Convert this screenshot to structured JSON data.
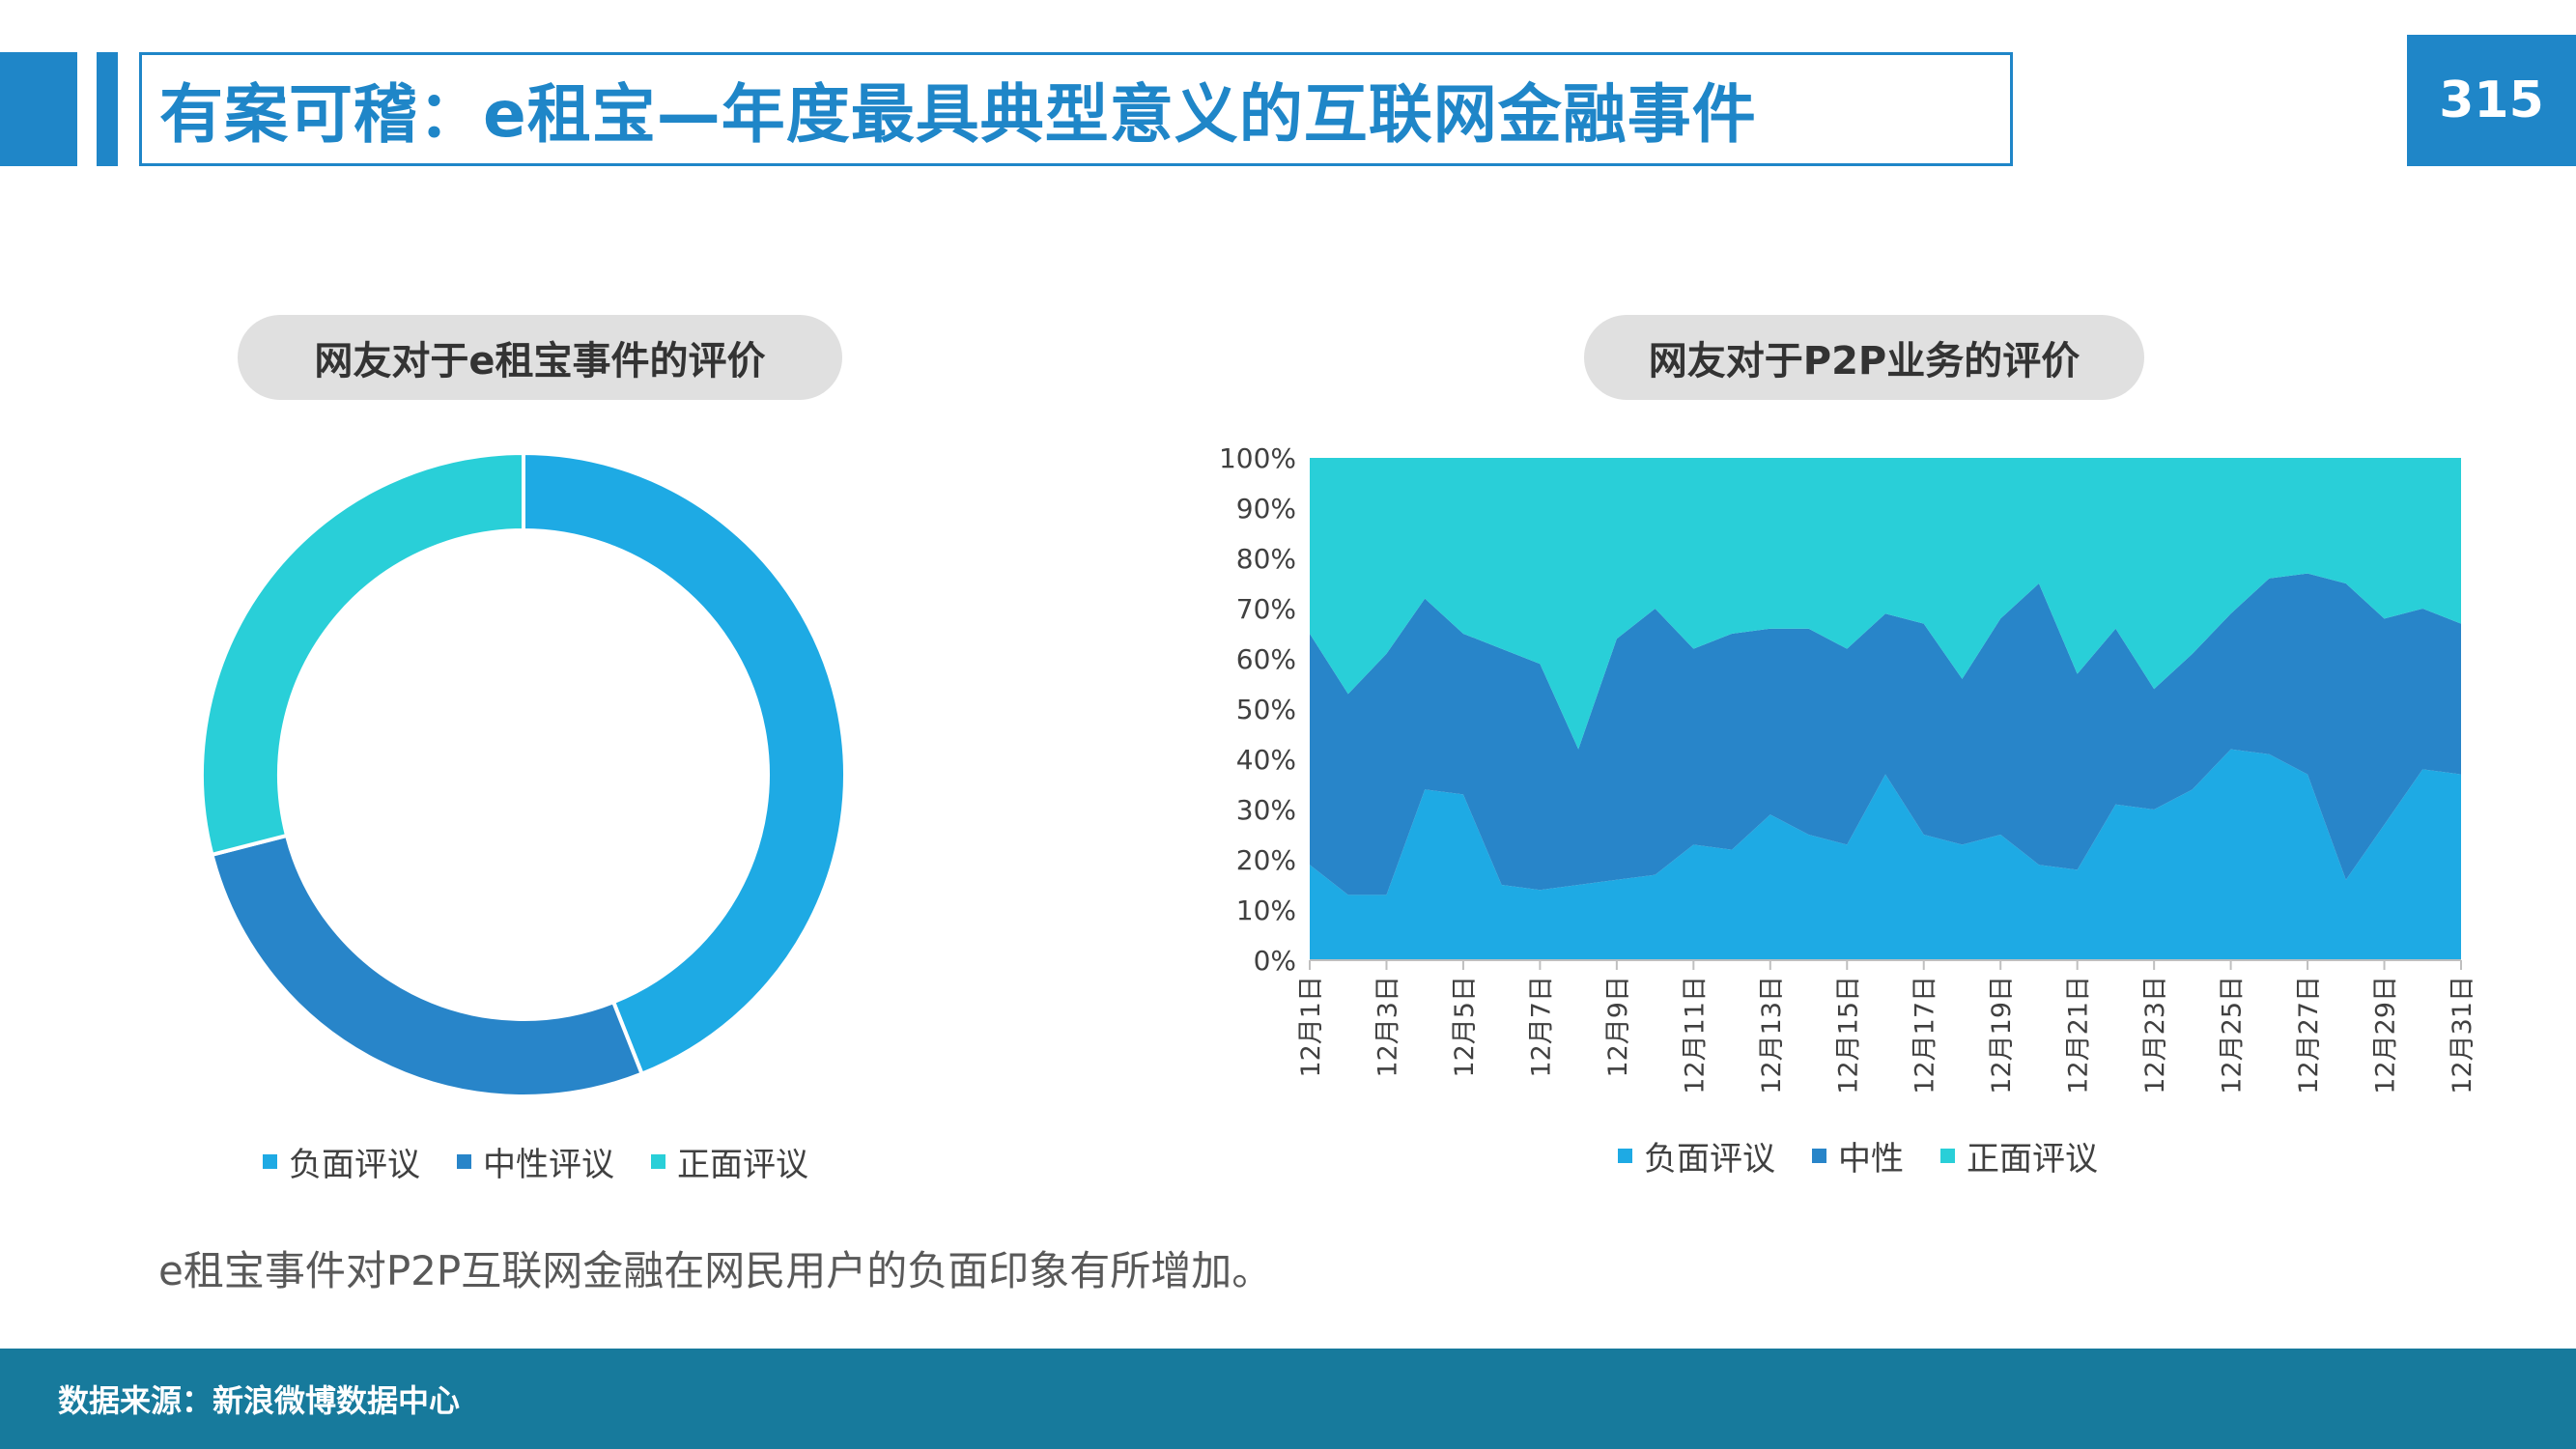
{
  "header": {
    "title": "有案可稽：e租宝—年度最具典型意义的互联网金融事件",
    "page_number": "315"
  },
  "colors": {
    "accent": "#1f86c8",
    "negative": "#1eaae4",
    "neutral": "#2885c9",
    "positive": "#29cfd8",
    "footer": "#177a9c"
  },
  "left_chart": {
    "pill_title": "网友对于e租宝事件的评价",
    "legend": [
      "负面评议",
      "中性评议",
      "正面评议"
    ]
  },
  "right_chart": {
    "pill_title": "网友对于P2P业务的评价",
    "legend": [
      "负面评议",
      "中性",
      "正面评议"
    ]
  },
  "chart_data": [
    {
      "type": "pie",
      "style": "donut",
      "title": "网友对于e租宝事件的评价",
      "categories": [
        "负面评议",
        "中性评议",
        "正面评议"
      ],
      "values": [
        44,
        27,
        29
      ],
      "colors": [
        "#1eaae4",
        "#2885c9",
        "#29cfd8"
      ],
      "legend_position": "bottom"
    },
    {
      "type": "area",
      "stacked": "percent",
      "title": "网友对于P2P业务的评价",
      "x_tick_labels": [
        "12月1日",
        "12月3日",
        "12月5日",
        "12月7日",
        "12月9日",
        "12月11日",
        "12月13日",
        "12月15日",
        "12月17日",
        "12月19日",
        "12月21日",
        "12月23日",
        "12月25日",
        "12月27日",
        "12月29日",
        "12月31日"
      ],
      "y_tick_labels": [
        "0%",
        "10%",
        "20%",
        "30%",
        "40%",
        "50%",
        "60%",
        "70%",
        "80%",
        "90%",
        "100%"
      ],
      "ylim": [
        0,
        100
      ],
      "days": [
        1,
        2,
        3,
        4,
        5,
        6,
        7,
        8,
        9,
        10,
        11,
        12,
        13,
        14,
        15,
        16,
        17,
        18,
        19,
        20,
        21,
        22,
        23,
        24,
        25,
        26,
        27,
        28,
        29,
        30,
        31
      ],
      "series": [
        {
          "name": "负面评议",
          "color": "#1eaae4",
          "values": [
            19,
            13,
            13,
            34,
            33,
            15,
            14,
            15,
            16,
            17,
            23,
            22,
            29,
            25,
            23,
            37,
            25,
            23,
            25,
            19,
            18,
            31,
            30,
            34,
            42,
            41,
            37,
            16,
            27,
            38,
            37
          ]
        },
        {
          "name": "中性",
          "color": "#2885c9",
          "values": [
            46,
            40,
            48,
            38,
            32,
            47,
            45,
            27,
            48,
            53,
            39,
            43,
            37,
            41,
            39,
            32,
            42,
            33,
            43,
            56,
            39,
            35,
            24,
            27,
            27,
            35,
            40,
            59,
            41,
            32,
            30
          ]
        },
        {
          "name": "正面评议",
          "color": "#29cfd8",
          "values": [
            35,
            47,
            39,
            28,
            35,
            38,
            41,
            58,
            36,
            30,
            38,
            35,
            34,
            34,
            38,
            31,
            33,
            44,
            32,
            25,
            43,
            34,
            46,
            39,
            31,
            24,
            23,
            25,
            32,
            30,
            33
          ]
        }
      ],
      "legend_position": "bottom"
    }
  ],
  "footer": {
    "note": "e租宝事件对P2P互联网金融在网民用户的负面印象有所增加。",
    "source": "数据来源：新浪微博数据中心"
  }
}
